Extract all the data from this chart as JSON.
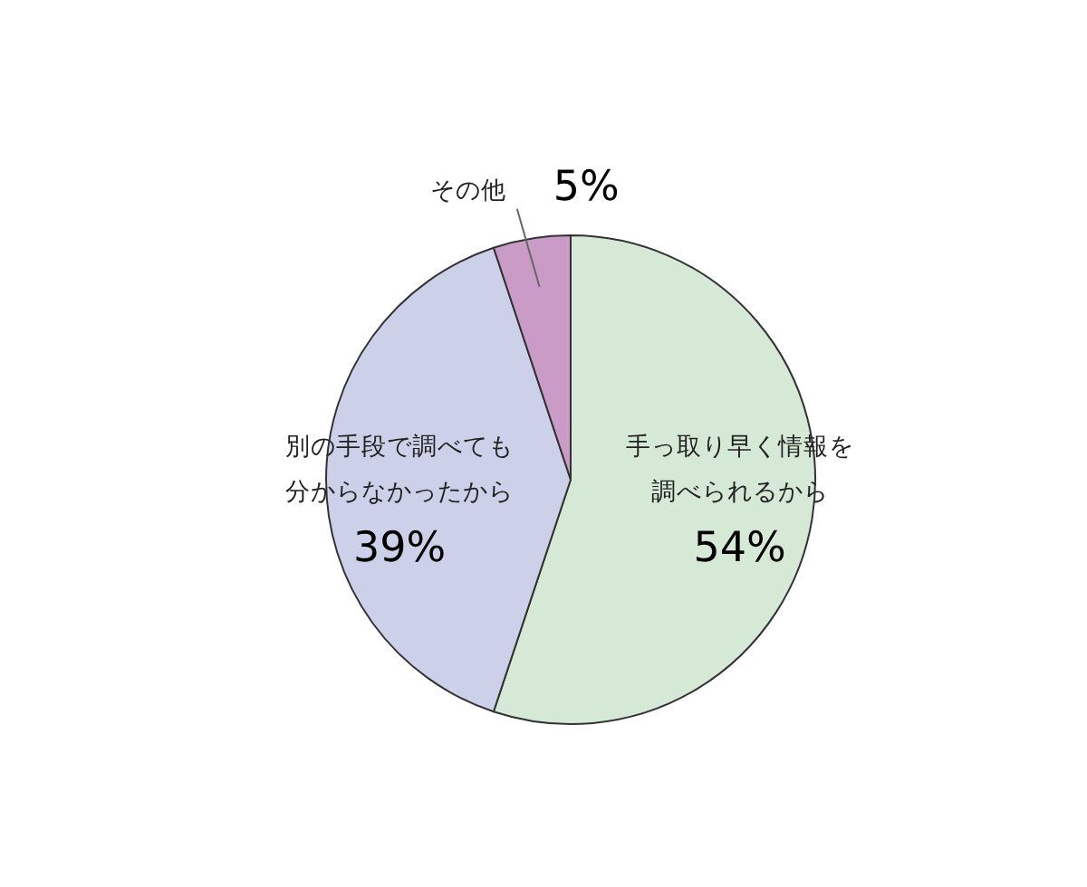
{
  "chart_data": {
    "type": "pie",
    "categories": [
      "手っ取り早く情報を調べられるから",
      "別の手段で調べても分からなかったから",
      "その他"
    ],
    "values": [
      54,
      39,
      5
    ],
    "colors": [
      "#d6e9d6",
      "#ccd1e9",
      "#c99bc6"
    ],
    "value_labels": [
      "54%",
      "39%",
      "5%"
    ]
  }
}
